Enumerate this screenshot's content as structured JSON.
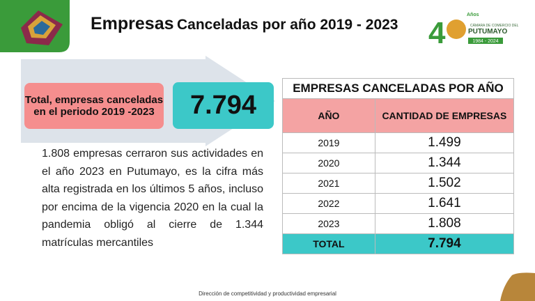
{
  "header": {
    "title_main": "Empresas",
    "title_rest": "Canceladas por año 2019 - 2023"
  },
  "logo": {
    "number": "4",
    "years": "Años",
    "org_line": "CÁMARA DE COMERCIO DEL",
    "org_name": "PUTUMAYO",
    "period": "1984 - 2024"
  },
  "summary": {
    "label": "Total, empresas canceladas en el periodo 2019 -2023",
    "value": "7.794"
  },
  "paragraph": "1.808 empresas cerraron sus actividades en el año 2023 en Putumayo, es la cifra más alta registrada en los últimos 5 años, incluso por encima de la vigencia 2020 en la cual la pandemia obligó al cierre de 1.344 matrículas mercantiles",
  "table": {
    "title": "EMPRESAS CANCELADAS POR AÑO",
    "headers": [
      "AÑO",
      "CANTIDAD DE EMPRESAS"
    ],
    "rows": [
      [
        "2019",
        "1.499"
      ],
      [
        "2020",
        "1.344"
      ],
      [
        "2021",
        "1.502"
      ],
      [
        "2022",
        "1.641"
      ],
      [
        "2023",
        "1.808"
      ]
    ],
    "total": [
      "TOTAL",
      "7.794"
    ]
  },
  "footer": "Dirección de competitividad y productividad empresarial"
}
